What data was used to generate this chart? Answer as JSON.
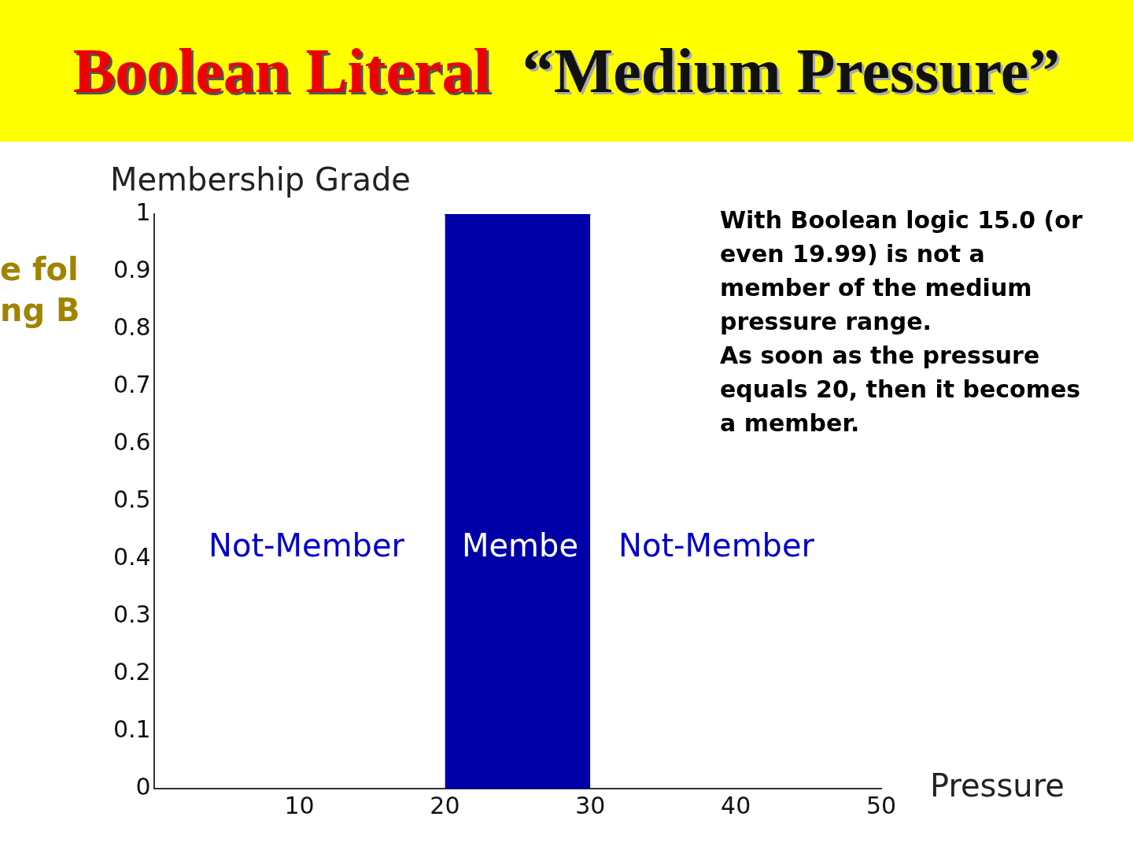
{
  "chart_data": {
    "type": "area",
    "title": "Boolean Literal",
    "subtitle": "“Medium Pressure”",
    "xlabel": "Pressure",
    "ylabel": "Membership Grade",
    "x": [
      20,
      30
    ],
    "series": [
      {
        "color": "#0000a8",
        "values": [
          1,
          1
        ]
      }
    ],
    "xlim": [
      0,
      50
    ],
    "xticks": [
      10,
      20,
      30,
      40,
      50
    ],
    "ylim": [
      0,
      1
    ],
    "yticks": [
      0,
      0.1,
      0.2,
      0.3,
      0.4,
      0.5,
      0.6,
      0.7,
      0.8,
      0.9,
      1
    ],
    "grid": false,
    "legend": false,
    "annotations": [
      "e fol\nng B",
      "With Boolean logic 15.0 (or even 19.99) is not a member of the medium pressure range.\n As soon as the pressure equals 20, then it becomes a member.",
      "Not-Member",
      "Membe",
      "Not-Member"
    ]
  }
}
